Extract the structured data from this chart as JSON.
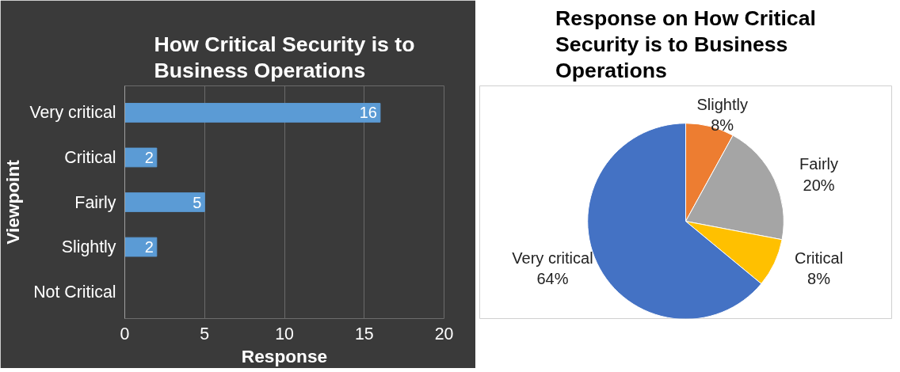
{
  "chart_data": [
    {
      "type": "bar",
      "orientation": "horizontal",
      "title": "How Critical Security is to Business Operations",
      "xlabel": "Response",
      "ylabel": "Viewpoint",
      "categories": [
        "Very critical",
        "Critical",
        "Fairly",
        "Slightly",
        "Not Critical"
      ],
      "values": [
        16,
        2,
        5,
        2,
        0
      ],
      "value_labels": [
        "16",
        "2",
        "5",
        "2",
        null
      ],
      "color": "#5b9bd5",
      "xlim": [
        0,
        20
      ],
      "xticks": [
        0,
        5,
        10,
        15,
        20
      ],
      "grid": "x"
    },
    {
      "type": "pie",
      "title": "Response on How Critical Security is to Business Operations",
      "categories": [
        "Slightly",
        "Fairly",
        "Critical",
        "Very critical"
      ],
      "values": [
        8,
        20,
        8,
        64
      ],
      "value_labels": [
        "8%",
        "20%",
        "8%",
        "64%"
      ],
      "colors": [
        "#ed7d31",
        "#a5a5a5",
        "#ffc000",
        "#4472c4"
      ]
    }
  ]
}
